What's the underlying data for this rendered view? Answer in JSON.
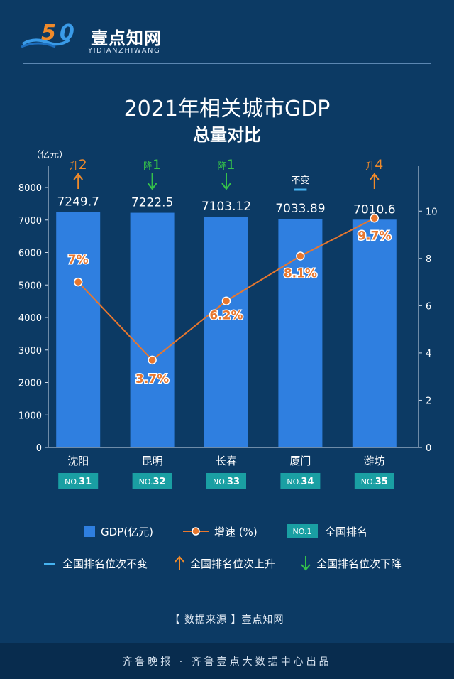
{
  "header": {
    "logo_text": "壹点知网",
    "logo_sub": "YIDIANZHIWANG",
    "title_line1": "2021年相关城市GDP",
    "title_line2": "总量对比"
  },
  "chart_data": {
    "type": "bar",
    "title": "2021年相关城市GDP 总量对比",
    "ylabel": "（亿元）",
    "ylim": [
      0,
      8000
    ],
    "yticks": [
      0,
      1000,
      2000,
      3000,
      4000,
      5000,
      6000,
      7000,
      8000
    ],
    "y2lim": [
      0,
      11
    ],
    "y2ticks": [
      0,
      2,
      4,
      6,
      8,
      10
    ],
    "categories": [
      "沈阳",
      "昆明",
      "长春",
      "厦门",
      "潍坊"
    ],
    "gdp_labels": [
      "7249.7",
      "7222.5",
      "7103.12",
      "7033.89",
      "7010.6"
    ],
    "series": [
      {
        "name": "GDP(亿元)",
        "type": "bar",
        "values": [
          7249.7,
          7222.5,
          7103.12,
          7033.89,
          7010.6
        ],
        "color": "#2f7fe0"
      },
      {
        "name": "增速 (%)",
        "type": "line",
        "axis": "right",
        "values": [
          7.0,
          3.7,
          6.2,
          8.1,
          9.7
        ],
        "labels": [
          "7%",
          "3.7%",
          "6.2%",
          "8.1%",
          "9.7%"
        ],
        "color": "#e8772e"
      }
    ],
    "ranks": [
      "31",
      "32",
      "33",
      "34",
      "35"
    ],
    "rank_prefix": "NO.",
    "rank_change": [
      {
        "dir": "up",
        "text": "升",
        "num": "2"
      },
      {
        "dir": "down",
        "text": "降",
        "num": "1"
      },
      {
        "dir": "down",
        "text": "降",
        "num": "1"
      },
      {
        "dir": "same",
        "text": "不变",
        "num": ""
      },
      {
        "dir": "up",
        "text": "升",
        "num": "4"
      }
    ],
    "grid": false
  },
  "legend": {
    "gdp": "GDP(亿元)",
    "growth": "增速 (%)",
    "rank_badge": "NO.1",
    "rank_label": "全国排名",
    "same": "全国排名位次不变",
    "up": "全国排名位次上升",
    "down": "全国排名位次下降"
  },
  "colors": {
    "up": "#f08a2a",
    "down": "#35c24a",
    "same": "#46b3f0",
    "bar": "#2f7fe0",
    "line": "#e8772e",
    "badge": "#1a9fa3"
  },
  "source": "【 数据来源 】壹点知网",
  "footer": "齐鲁晚报 · 齐鲁壹点大数据中心出品"
}
